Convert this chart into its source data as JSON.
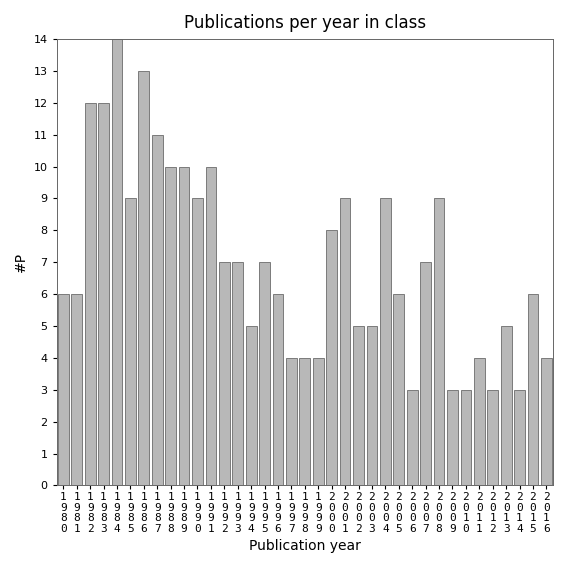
{
  "title": "Publications per year in class",
  "xlabel": "Publication year",
  "ylabel": "#P",
  "years": [
    "1980",
    "1981",
    "1982",
    "1983",
    "1984",
    "1985",
    "1986",
    "1987",
    "1988",
    "1989",
    "1990",
    "1991",
    "1992",
    "1993",
    "1994",
    "1995",
    "1996",
    "1997",
    "1998",
    "1999",
    "2000",
    "2001",
    "2002",
    "2003",
    "2004",
    "2005",
    "2006",
    "2007",
    "2008",
    "2009",
    "2010",
    "2011",
    "2012",
    "2013",
    "2014",
    "2015",
    "2016"
  ],
  "values": [
    6,
    6,
    12,
    12,
    14,
    9,
    13,
    11,
    10,
    10,
    9,
    10,
    7,
    7,
    5,
    7,
    6,
    4,
    4,
    4,
    8,
    9,
    5,
    5,
    9,
    6,
    3,
    7,
    9,
    3,
    3,
    4,
    3,
    5,
    3,
    6,
    4
  ],
  "bar_color": "#b8b8b8",
  "bar_edge_color": "#555555",
  "ylim": [
    0,
    14
  ],
  "yticks": [
    0,
    1,
    2,
    3,
    4,
    5,
    6,
    7,
    8,
    9,
    10,
    11,
    12,
    13,
    14
  ],
  "background_color": "#ffffff",
  "title_fontsize": 12,
  "label_fontsize": 10,
  "tick_fontsize": 8
}
